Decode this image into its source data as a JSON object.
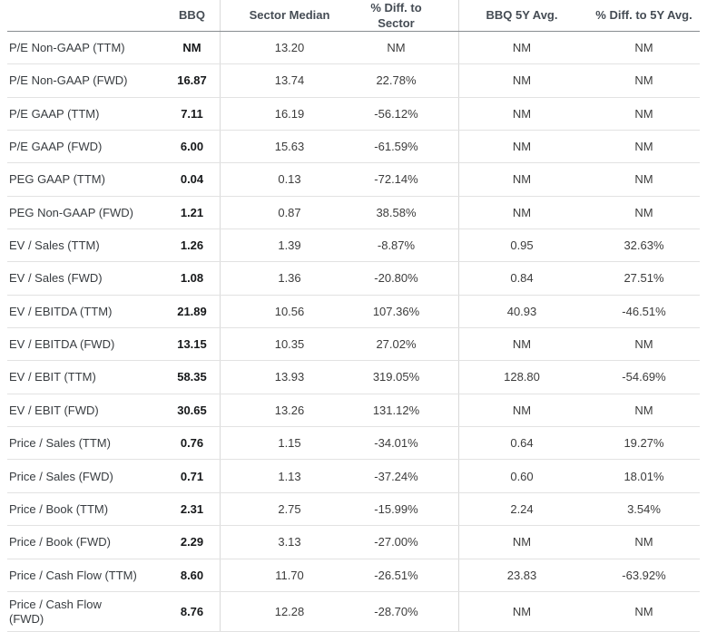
{
  "colors": {
    "header_text": "#454c54",
    "body_text": "#3c3c3c",
    "bbq_value_text": "#16181a",
    "column_divider": "#d9d9d9",
    "row_divider": "#e2e2e2",
    "header_underline": "#888c90",
    "background": "#ffffff"
  },
  "table": {
    "headers": {
      "metric": "",
      "bbq": "BBQ",
      "sector_median": "Sector Median",
      "diff_sector": "% Diff. to Sector",
      "bbq_5y": "BBQ 5Y Avg.",
      "diff_5y": "% Diff. to 5Y Avg."
    },
    "rows": [
      {
        "label": "P/E Non-GAAP (TTM)",
        "bbq": "NM",
        "sector_median": "13.20",
        "diff_sector": "NM",
        "bbq_5y": "NM",
        "diff_5y": "NM"
      },
      {
        "label": "P/E Non-GAAP (FWD)",
        "bbq": "16.87",
        "sector_median": "13.74",
        "diff_sector": "22.78%",
        "bbq_5y": "NM",
        "diff_5y": "NM"
      },
      {
        "label": "P/E GAAP (TTM)",
        "bbq": "7.11",
        "sector_median": "16.19",
        "diff_sector": "-56.12%",
        "bbq_5y": "NM",
        "diff_5y": "NM"
      },
      {
        "label": "P/E GAAP (FWD)",
        "bbq": "6.00",
        "sector_median": "15.63",
        "diff_sector": "-61.59%",
        "bbq_5y": "NM",
        "diff_5y": "NM"
      },
      {
        "label": "PEG GAAP (TTM)",
        "bbq": "0.04",
        "sector_median": "0.13",
        "diff_sector": "-72.14%",
        "bbq_5y": "NM",
        "diff_5y": "NM"
      },
      {
        "label": "PEG Non-GAAP (FWD)",
        "bbq": "1.21",
        "sector_median": "0.87",
        "diff_sector": "38.58%",
        "bbq_5y": "NM",
        "diff_5y": "NM"
      },
      {
        "label": "EV / Sales (TTM)",
        "bbq": "1.26",
        "sector_median": "1.39",
        "diff_sector": "-8.87%",
        "bbq_5y": "0.95",
        "diff_5y": "32.63%"
      },
      {
        "label": "EV / Sales (FWD)",
        "bbq": "1.08",
        "sector_median": "1.36",
        "diff_sector": "-20.80%",
        "bbq_5y": "0.84",
        "diff_5y": "27.51%"
      },
      {
        "label": "EV / EBITDA (TTM)",
        "bbq": "21.89",
        "sector_median": "10.56",
        "diff_sector": "107.36%",
        "bbq_5y": "40.93",
        "diff_5y": "-46.51%"
      },
      {
        "label": "EV / EBITDA (FWD)",
        "bbq": "13.15",
        "sector_median": "10.35",
        "diff_sector": "27.02%",
        "bbq_5y": "NM",
        "diff_5y": "NM"
      },
      {
        "label": "EV / EBIT (TTM)",
        "bbq": "58.35",
        "sector_median": "13.93",
        "diff_sector": "319.05%",
        "bbq_5y": "128.80",
        "diff_5y": "-54.69%"
      },
      {
        "label": "EV / EBIT (FWD)",
        "bbq": "30.65",
        "sector_median": "13.26",
        "diff_sector": "131.12%",
        "bbq_5y": "NM",
        "diff_5y": "NM"
      },
      {
        "label": "Price / Sales (TTM)",
        "bbq": "0.76",
        "sector_median": "1.15",
        "diff_sector": "-34.01%",
        "bbq_5y": "0.64",
        "diff_5y": "19.27%"
      },
      {
        "label": "Price / Sales (FWD)",
        "bbq": "0.71",
        "sector_median": "1.13",
        "diff_sector": "-37.24%",
        "bbq_5y": "0.60",
        "diff_5y": "18.01%"
      },
      {
        "label": "Price / Book (TTM)",
        "bbq": "2.31",
        "sector_median": "2.75",
        "diff_sector": "-15.99%",
        "bbq_5y": "2.24",
        "diff_5y": "3.54%"
      },
      {
        "label": "Price / Book (FWD)",
        "bbq": "2.29",
        "sector_median": "3.13",
        "diff_sector": "-27.00%",
        "bbq_5y": "NM",
        "diff_5y": "NM"
      },
      {
        "label": "Price / Cash Flow (TTM)",
        "bbq": "8.60",
        "sector_median": "11.70",
        "diff_sector": "-26.51%",
        "bbq_5y": "23.83",
        "diff_5y": "-63.92%"
      },
      {
        "label": "Price / Cash Flow\n(FWD)",
        "bbq": "8.76",
        "sector_median": "12.28",
        "diff_sector": "-28.70%",
        "bbq_5y": "NM",
        "diff_5y": "NM"
      }
    ]
  }
}
